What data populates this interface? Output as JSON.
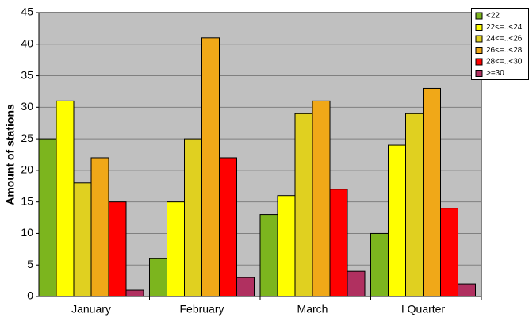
{
  "chart_data": {
    "type": "bar",
    "y_label": "Amount of stations",
    "categories": [
      "January",
      "February",
      "March",
      "I Quarter"
    ],
    "series": [
      {
        "name": "<22",
        "color": "#7cb51e",
        "values": [
          25,
          6,
          13,
          10
        ]
      },
      {
        "name": "22<=..<24",
        "color": "#ffff00",
        "values": [
          31,
          15,
          16,
          24
        ]
      },
      {
        "name": "24<=..<26",
        "color": "#e0d020",
        "values": [
          18,
          25,
          29,
          29
        ]
      },
      {
        "name": "26<=..<28",
        "color": "#f0a818",
        "values": [
          22,
          41,
          31,
          33
        ]
      },
      {
        "name": "28<=..<30",
        "color": "#ff0000",
        "values": [
          15,
          22,
          17,
          14
        ]
      },
      {
        "name": ">=30",
        "color": "#b03060",
        "values": [
          1,
          3,
          4,
          2
        ]
      }
    ],
    "ylim": [
      0,
      45
    ],
    "yticks": [
      0,
      5,
      10,
      15,
      20,
      25,
      30,
      35,
      40,
      45
    ],
    "grid": true,
    "legend": "top-right"
  }
}
